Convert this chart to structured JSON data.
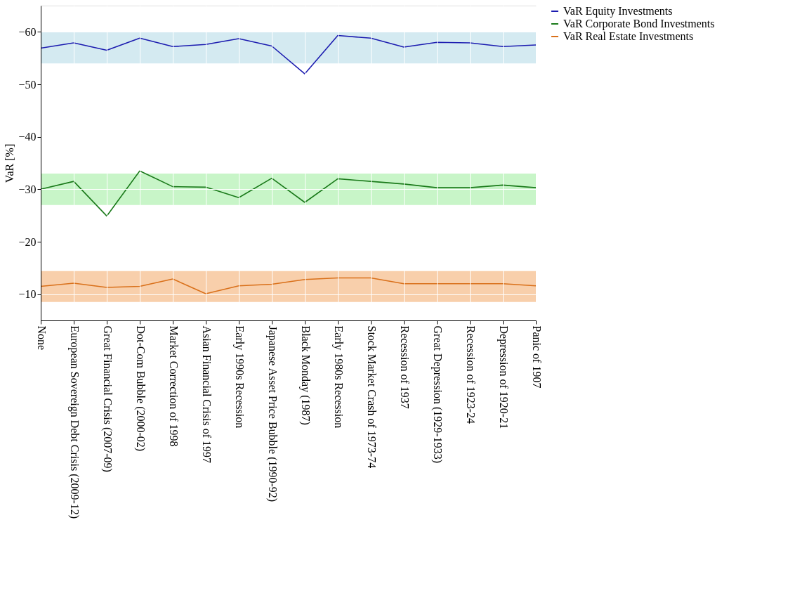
{
  "chart_data": {
    "type": "line",
    "ylabel": "VaR [%]",
    "categories": [
      "None",
      "European Sovereign Debt Crisis (2009-12)",
      "Great Financial Crisis (2007-09)",
      "Dot-Com Bubble (2000-02)",
      "Market Correction of 1998",
      "Asian Financial Crisis of 1997",
      "Early 1990s Recession",
      "Japanese Asset Price Bubble (1990-92)",
      "Black Monday (1987)",
      "Early 1980s Recession",
      "Stock Market Crash of 1973-74",
      "Recession of 1937",
      "Great Depression (1929-1933)",
      "Recession of 1923-24",
      "Depression of 1920-21",
      "Panic of 1907"
    ],
    "series": [
      {
        "name": "VaR Equity Investments",
        "color": "#1c1cb0",
        "values": [
          -56.9,
          -57.9,
          -56.5,
          -58.8,
          -57.2,
          -57.6,
          -58.7,
          -57.3,
          -52.0,
          -59.3,
          -58.8,
          -57.1,
          -58.0,
          -57.9,
          -57.2,
          -57.5
        ]
      },
      {
        "name": "VaR Corporate Bond Investments",
        "color": "#1a7a1a",
        "values": [
          -30.0,
          -31.5,
          -24.9,
          -33.5,
          -30.5,
          -30.4,
          -28.4,
          -32.1,
          -27.5,
          -32.0,
          -31.5,
          -31.0,
          -30.3,
          -30.3,
          -30.8,
          -30.3
        ]
      },
      {
        "name": "VaR Real Estate Investments",
        "color": "#d9701a",
        "values": [
          -11.5,
          -12.1,
          -11.3,
          -11.5,
          -12.9,
          -10.1,
          -11.6,
          -11.9,
          -12.8,
          -13.1,
          -13.1,
          -12.0,
          -12.0,
          -12.0,
          -12.0,
          -11.6
        ]
      }
    ],
    "bands": [
      {
        "axis": "y",
        "from": -60,
        "to": -54,
        "color": "#d4eaf1"
      },
      {
        "axis": "y",
        "from": -33,
        "to": -27,
        "color": "#c8f5c8"
      },
      {
        "axis": "y",
        "from": -14.4,
        "to": -8.5,
        "color": "#f8cfab"
      }
    ],
    "ylim": [
      -5,
      -65
    ],
    "yticks": [
      -60,
      -50,
      -40,
      -30,
      -20,
      -10
    ],
    "grid": true,
    "legend": "right",
    "marker": "none",
    "line_style": "solid"
  }
}
